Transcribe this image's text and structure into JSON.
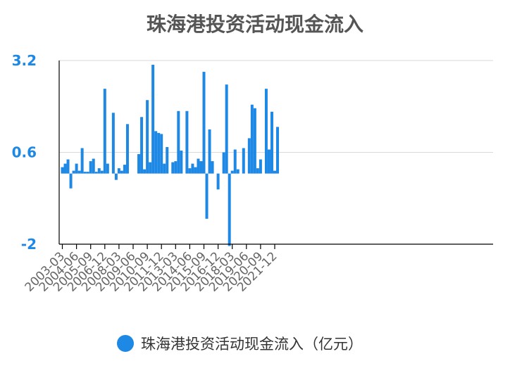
{
  "chart_data": {
    "type": "bar",
    "title": "珠海港投资活动现金流入",
    "ylim": [
      -2,
      3.2
    ],
    "yticks": [
      "3.2",
      "0.6",
      "-2"
    ],
    "xticks": [
      "2003-03",
      "2004-06",
      "2005-09",
      "2006-12",
      "2008-03",
      "2009-06",
      "2010-09",
      "2011-12",
      "2013-03",
      "2014-06",
      "2015-09",
      "2016-12",
      "2018-03",
      "2019-06",
      "2020-09",
      "2021-12"
    ],
    "legend_position": "bottom",
    "grid": true,
    "colors": {
      "bar": "#1e88e5",
      "axis": "#000000",
      "grid": "#d9d9d9",
      "title": "#555555",
      "ytick": "#1e88e5"
    },
    "series": [
      {
        "name": "珠海港投资活动现金流入（亿元）",
        "values": [
          0.18,
          0.28,
          0.4,
          -0.42,
          0.08,
          0.28,
          0.08,
          0.72,
          0.05,
          0.05,
          0.35,
          0.42,
          0.05,
          0.15,
          0.08,
          2.4,
          0.28,
          0.0,
          1.72,
          -0.18,
          0.15,
          0.08,
          0.25,
          1.4,
          0.0,
          0.0,
          0.0,
          0.55,
          1.6,
          0.12,
          2.08,
          0.32,
          3.08,
          1.2,
          1.15,
          1.12,
          0.28,
          0.75,
          0.0,
          0.32,
          0.35,
          1.77,
          0.65,
          0.0,
          1.77,
          0.15,
          0.28,
          0.18,
          0.42,
          0.35,
          2.88,
          -1.28,
          1.25,
          0.35,
          0.0,
          -0.45,
          0.0,
          0.6,
          2.52,
          -2.05,
          0.08,
          0.68,
          0.12,
          0.0,
          0.72,
          0.0,
          1.0,
          1.95,
          1.85,
          0.15,
          0.4,
          0.0,
          2.4,
          0.68,
          1.75,
          0.08,
          1.32
        ]
      }
    ]
  }
}
